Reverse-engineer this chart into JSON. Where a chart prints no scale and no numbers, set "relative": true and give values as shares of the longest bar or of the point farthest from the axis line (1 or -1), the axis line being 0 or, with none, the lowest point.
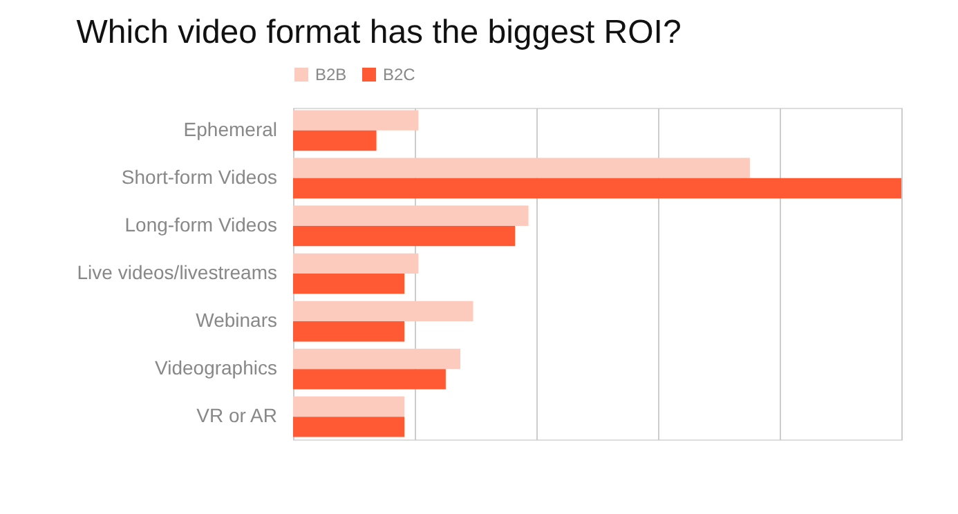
{
  "chart_data": {
    "type": "bar",
    "orientation": "horizontal",
    "relative": true,
    "title": "Which video format has the biggest ROI?",
    "categories": [
      "Ephemeral",
      "Short-form Videos",
      "Long-form Videos",
      "Live videos/livestreams",
      "Webinars",
      "Videographics",
      "VR or AR"
    ],
    "series": [
      {
        "name": "B2B",
        "color": "#fccbbd",
        "values": [
          0.206,
          0.751,
          0.387,
          0.206,
          0.296,
          0.275,
          0.183
        ]
      },
      {
        "name": "B2C",
        "color": "#ff5a33",
        "values": [
          0.137,
          1.0,
          0.365,
          0.183,
          0.183,
          0.251,
          0.183
        ]
      }
    ],
    "grid": "x",
    "legend": "top"
  }
}
